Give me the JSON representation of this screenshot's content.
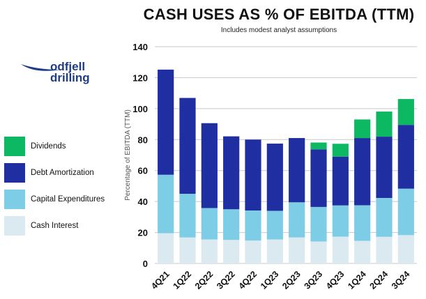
{
  "chart_data": {
    "type": "bar",
    "stacked": true,
    "title": "CASH USES AS % OF EBITDA (TTM)",
    "subtitle": "Includes modest analyst assumptions",
    "ylabel": "Percentage of EBITDA (TTM)",
    "xlabel": "",
    "ylim": [
      0,
      140
    ],
    "yticks": [
      "0",
      "20",
      "40",
      "60",
      "80",
      "100",
      "120",
      "140"
    ],
    "grid": true,
    "legend_position": "left",
    "categories": [
      "4Q21",
      "1Q22",
      "2Q22",
      "3Q22",
      "4Q22",
      "1Q23",
      "2Q23",
      "3Q23",
      "4Q23",
      "1Q24",
      "2Q24",
      "3Q24"
    ],
    "series": [
      {
        "name": "Cash Interest",
        "color": "#dbeaf0",
        "values": [
          19.5,
          16.8,
          15.5,
          15.2,
          14.8,
          15.5,
          16.8,
          14.2,
          17.3,
          14.6,
          17.2,
          18.3
        ]
      },
      {
        "name": "Capital Expenditures",
        "color": "#7ecde6",
        "values": [
          37.8,
          28.2,
          20.3,
          19.8,
          19.4,
          18.5,
          22.7,
          22.3,
          20.2,
          23.0,
          25.1,
          30.0
        ]
      },
      {
        "name": "Debt Amortization",
        "color": "#1f2ea1",
        "values": [
          67.9,
          61.9,
          54.8,
          47.1,
          45.8,
          43.4,
          41.5,
          37.2,
          31.5,
          43.4,
          39.6,
          41.2
        ]
      },
      {
        "name": "Dividends",
        "color": "#0db863",
        "values": [
          0,
          0,
          0,
          0,
          0,
          0,
          0,
          4.4,
          8.3,
          12.0,
          16.2,
          16.7
        ]
      }
    ]
  },
  "legend_order": [
    "Dividends",
    "Debt Amortization",
    "Capital Expenditures",
    "Cash Interest"
  ],
  "logo": {
    "line1": "odfjell",
    "line2": "drilling"
  }
}
